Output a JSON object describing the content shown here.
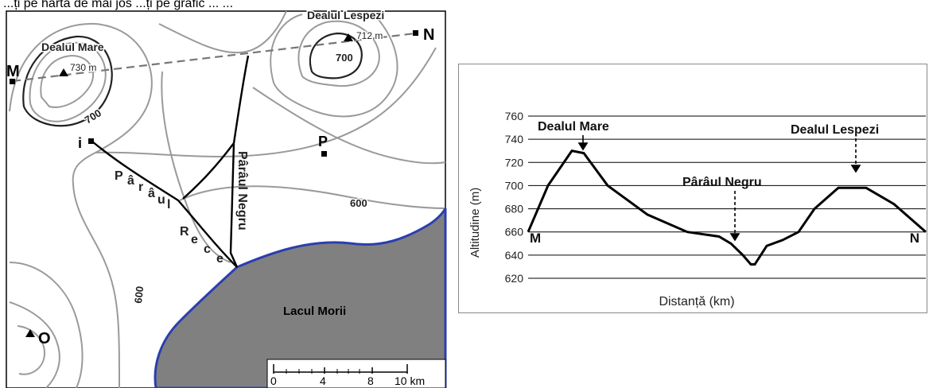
{
  "caption": "...ți pe harta de mai jos ...ți pe grafic ... ...",
  "map": {
    "peak_mare": {
      "name": "Dealul Mare",
      "elevation": "730 m"
    },
    "peak_lespezi": {
      "name": "Dealul Lespezi",
      "elevation": "712 m"
    },
    "points": {
      "M": "M",
      "N": "N",
      "i": "i",
      "P": "P",
      "O": "O"
    },
    "contours": {
      "c700a": "700",
      "c700b": "700",
      "c600a": "600",
      "c600b": "600"
    },
    "rivers": {
      "parau_rece": [
        "P",
        "â",
        "r",
        "â",
        "u",
        "l",
        "R",
        "e",
        "c",
        "e"
      ],
      "paraul_negru": "Pârâul Negru"
    },
    "lake": "Lacul Morii",
    "scale": {
      "ticks": [
        "0",
        "4",
        "8",
        "10 km"
      ]
    },
    "colors": {
      "contour": "#9a9a9a",
      "lake_fill": "#808080",
      "lake_shore": "#2b3fae",
      "river": "#000000"
    }
  },
  "profile": {
    "labels": {
      "peak_left": "Dealul Mare",
      "peak_right": "Dealul Lespezi",
      "valley": "Pârâul Negru",
      "start": "M",
      "end": "N"
    }
  },
  "chart_data": {
    "type": "line",
    "ylabel": "Altitudine (m)",
    "xlabel": "Distanță (km)",
    "ylim": [
      620,
      760
    ],
    "yticks": [
      620,
      640,
      660,
      680,
      700,
      720,
      740,
      760
    ],
    "grid": true,
    "series": [
      {
        "x": [
          0,
          5,
          11,
          14,
          20,
          30,
          40,
          48,
          51,
          54,
          56,
          57,
          60,
          64,
          68,
          72,
          78,
          85,
          92,
          100
        ],
        "y": [
          660,
          700,
          730,
          728,
          700,
          675,
          660,
          656,
          650,
          640,
          632,
          632,
          648,
          653,
          660,
          680,
          698,
          698,
          684,
          660
        ]
      }
    ]
  }
}
